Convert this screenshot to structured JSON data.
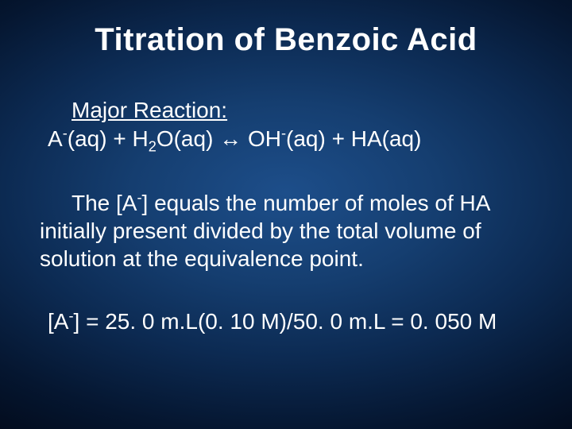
{
  "colors": {
    "text": "#ffffff",
    "bg_center": "#1d4e8a",
    "bg_mid": "#0c2a52",
    "bg_edge": "#020a1a"
  },
  "typography": {
    "family": "Arial",
    "title_size_pt": 30,
    "body_size_pt": 21
  },
  "title": "Titration of Benzoic Acid",
  "reaction": {
    "label": "Major Reaction:",
    "lhs1": "A",
    "lhs1_sup": "-",
    "lhs1_state": "(aq)",
    "plus1": "  +  ",
    "lhs2": "H",
    "lhs2_sub": "2",
    "lhs2b": "O(aq)",
    "arrow": " ↔ ",
    "rhs1": "OH",
    "rhs1_sup": "-",
    "rhs1_state": "(aq)",
    "plus2": " + ",
    "rhs2": "HA(aq)"
  },
  "paragraph": {
    "pre": "The [A",
    "sup": "-",
    "post": "] equals the number of moles of HA initially present divided by the total volume of solution at the equivalence point."
  },
  "calc": {
    "pre": "[A",
    "sup": "-",
    "post": "] = 25. 0 m.L(0. 10 M)/50. 0 m.L = 0. 050 M"
  }
}
